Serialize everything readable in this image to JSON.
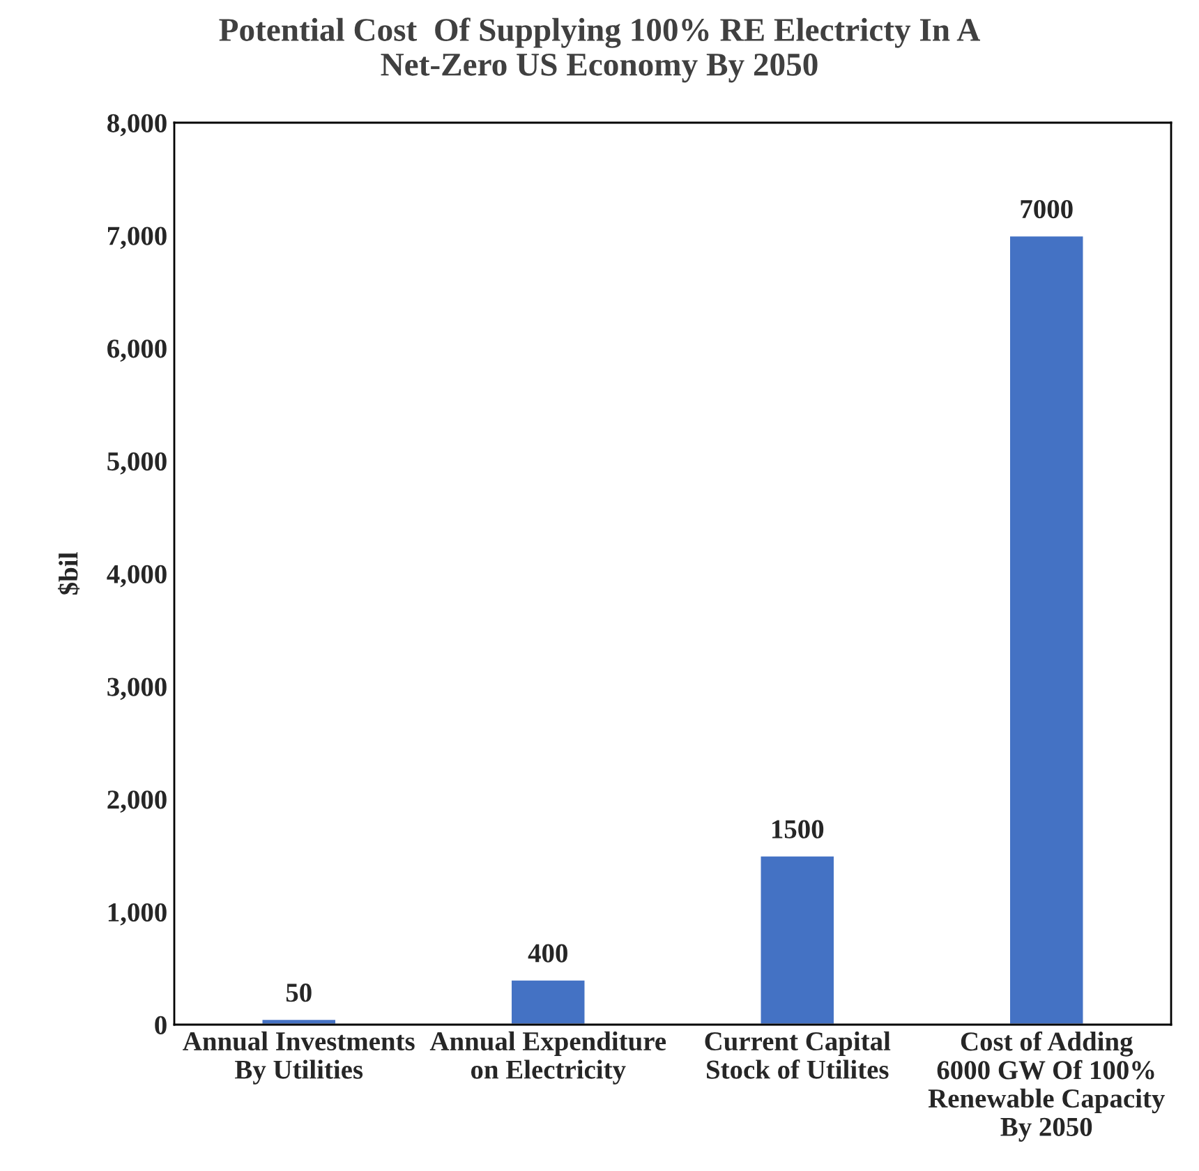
{
  "chart_data": {
    "type": "bar",
    "title": "Potential Cost  Of Supplying 100% RE Electricty In A Net-Zero US Economy By 2050",
    "ylabel": "$bil",
    "categories": [
      "Annual Investments By Utilities",
      "Annual Expenditure on Electricity",
      "Current Capital Stock of Utilites",
      "Cost of Adding 6000 GW Of 100% Renewable Capacity By 2050"
    ],
    "values": [
      50,
      400,
      1500,
      7000
    ],
    "color": "#4472c4",
    "ylim": [
      0,
      8000
    ],
    "yticks": [
      0,
      {
        "value": 1000,
        "label": "1,000"
      },
      {
        "value": 2000,
        "label": "2,000"
      },
      {
        "value": 3000,
        "label": "3,000"
      },
      {
        "value": 4000,
        "label": "4,000"
      },
      {
        "value": 5000,
        "label": "5,000"
      },
      {
        "value": 6000,
        "label": "6,000"
      },
      {
        "value": 7000,
        "label": "7,000"
      },
      {
        "value": 8000,
        "label": "8,000"
      }
    ],
    "data_labels": true,
    "grid": false,
    "legend": false
  }
}
